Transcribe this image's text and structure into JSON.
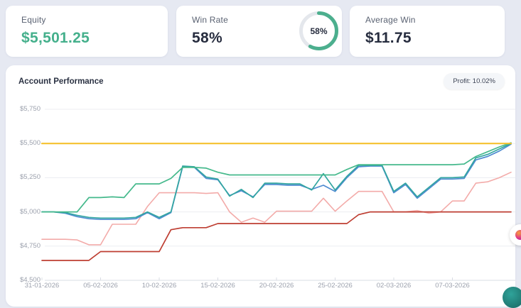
{
  "page": {
    "background": "#E6E9F2"
  },
  "cards": {
    "equity": {
      "label": "Equity",
      "value": "$5,501.25",
      "value_color": "#45B08C"
    },
    "win_rate": {
      "label": "Win Rate",
      "value": "58%",
      "percent": 58,
      "donut_label": "58%",
      "donut_color": "#4CAF8E",
      "donut_track_color": "#E4E7EC"
    },
    "average_win": {
      "label": "Average Win",
      "value": "$11.75"
    }
  },
  "chart": {
    "title": "Account Performance",
    "profit_badge": "Profit: 10.02%"
  },
  "chart_data": {
    "type": "line",
    "title": "Account Performance",
    "grid": true,
    "legend": false,
    "ylim": [
      4500,
      5750
    ],
    "y_ticks": [
      5750,
      5500,
      5250,
      5000,
      4750,
      4500
    ],
    "y_tick_labels": [
      "$5,750",
      "$5,500",
      "$5,250",
      "$5,000",
      "$4,750",
      "$4,500"
    ],
    "x_tick_indices": [
      0,
      5,
      10,
      15,
      20,
      25,
      30,
      35
    ],
    "x_tick_labels": [
      "31-01-2026",
      "05-02-2026",
      "10-02-2026",
      "15-02-2026",
      "20-02-2026",
      "25-02-2026",
      "02-03-2026",
      "07-03-2026"
    ],
    "x": [
      "31-01-2026",
      "01-02-2026",
      "02-02-2026",
      "03-02-2026",
      "04-02-2026",
      "05-02-2026",
      "06-02-2026",
      "07-02-2026",
      "08-02-2026",
      "09-02-2026",
      "10-02-2026",
      "11-02-2026",
      "12-02-2026",
      "13-02-2026",
      "14-02-2026",
      "15-02-2026",
      "16-02-2026",
      "17-02-2026",
      "18-02-2026",
      "19-02-2026",
      "20-02-2026",
      "21-02-2026",
      "22-02-2026",
      "23-02-2026",
      "24-02-2026",
      "25-02-2026",
      "26-02-2026",
      "27-02-2026",
      "28-02-2026",
      "01-03-2026",
      "02-03-2026",
      "03-03-2026",
      "04-03-2026",
      "05-03-2026",
      "06-03-2026",
      "07-03-2026",
      "08-03-2026",
      "09-03-2026",
      "10-03-2026",
      "11-03-2026",
      "12-03-2026"
    ],
    "series": [
      {
        "name": "account-pink",
        "color": "#F3ABA9",
        "width": 1.6,
        "values": [
          4800,
          4800,
          4800,
          4795,
          4760,
          4760,
          4910,
          4910,
          4910,
          5040,
          5140,
          5140,
          5140,
          5140,
          5135,
          5140,
          5000,
          4925,
          4955,
          4925,
          5005,
          5005,
          5005,
          5005,
          5100,
          5005,
          5080,
          5150,
          5150,
          5150,
          5000,
          5000,
          5010,
          4990,
          5000,
          5080,
          5080,
          5210,
          5220,
          5250,
          5290
        ]
      },
      {
        "name": "account-red",
        "color": "#BE3E32",
        "width": 1.7,
        "values": [
          4645,
          4645,
          4645,
          4645,
          4645,
          4710,
          4710,
          4710,
          4710,
          4710,
          4710,
          4870,
          4885,
          4885,
          4885,
          4915,
          4915,
          4915,
          4915,
          4915,
          4915,
          4915,
          4915,
          4915,
          4915,
          4915,
          4915,
          4980,
          5000,
          5000,
          5000,
          5000,
          5000,
          5000,
          5000,
          5000,
          5000,
          5000,
          5000,
          5000,
          5000
        ]
      },
      {
        "name": "account-blue",
        "color": "#4E8BD0",
        "width": 1.7,
        "values": [
          5000,
          5000,
          4990,
          4965,
          4950,
          4945,
          4945,
          4945,
          4950,
          4995,
          4950,
          4995,
          5330,
          5325,
          5245,
          5235,
          5120,
          5155,
          5110,
          5200,
          5200,
          5195,
          5195,
          5165,
          5195,
          5150,
          5250,
          5330,
          5335,
          5335,
          5140,
          5200,
          5100,
          5170,
          5240,
          5240,
          5245,
          5380,
          5405,
          5445,
          5495
        ]
      },
      {
        "name": "account-teal",
        "color": "#33A6A1",
        "width": 1.7,
        "values": [
          5000,
          5000,
          4995,
          4975,
          4960,
          4955,
          4955,
          4955,
          4960,
          5000,
          4960,
          5000,
          5335,
          5330,
          5255,
          5240,
          5115,
          5165,
          5105,
          5210,
          5210,
          5205,
          5205,
          5160,
          5280,
          5160,
          5260,
          5340,
          5340,
          5340,
          5150,
          5210,
          5110,
          5180,
          5250,
          5250,
          5255,
          5395,
          5420,
          5460,
          5500
        ]
      },
      {
        "name": "account-green",
        "color": "#45B98C",
        "width": 1.7,
        "values": [
          5000,
          5000,
          5000,
          5000,
          5105,
          5105,
          5110,
          5105,
          5205,
          5205,
          5205,
          5245,
          5325,
          5325,
          5320,
          5290,
          5270,
          5270,
          5270,
          5270,
          5270,
          5270,
          5270,
          5270,
          5270,
          5270,
          5310,
          5345,
          5345,
          5345,
          5345,
          5345,
          5345,
          5345,
          5345,
          5345,
          5350,
          5405,
          5440,
          5475,
          5505
        ]
      },
      {
        "name": "target-line",
        "color": "#F5C12E",
        "width": 2.2,
        "constant": 5500
      }
    ]
  },
  "floating": {
    "widget_button_gradient": [
      "#F6A13B",
      "#E0368C",
      "#8A2F9E"
    ],
    "chat_button_color": "#2FA39A"
  }
}
